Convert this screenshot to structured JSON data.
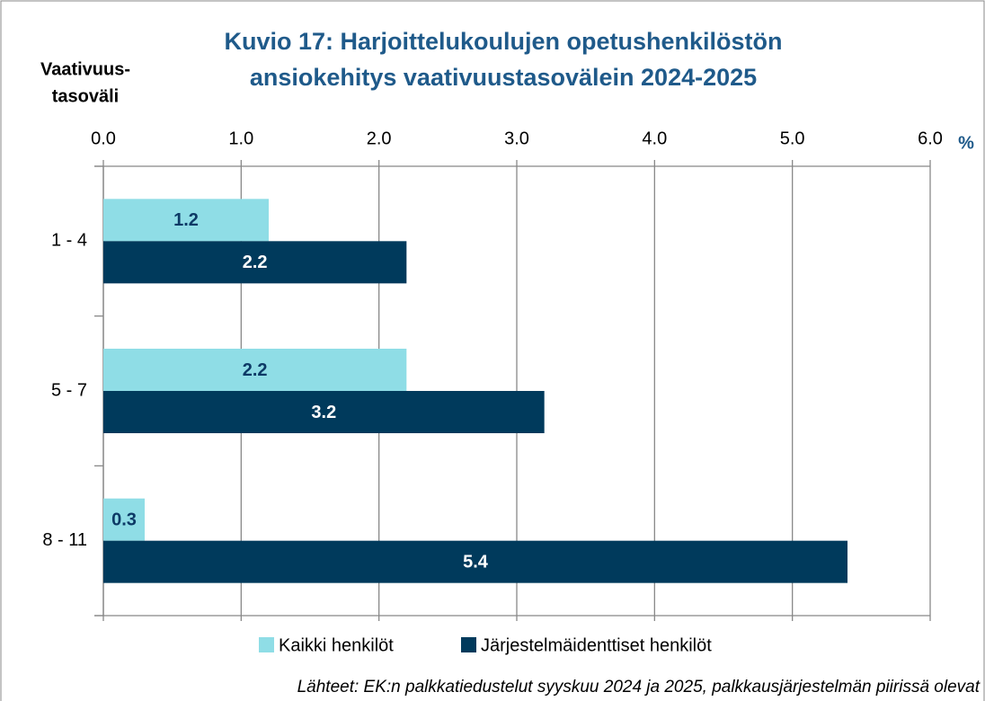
{
  "chart_data": {
    "type": "barh",
    "title_lines": [
      "Kuvio 17: Harjoittelukoulujen opetushenkilöstön",
      "ansiokehitys vaativuustasovälein 2024-2025"
    ],
    "y_label_lines": [
      "Vaativuus-",
      "tasoväli"
    ],
    "x_unit": "%",
    "categories": [
      "1 - 4",
      "5 - 7",
      "8 - 11"
    ],
    "series": [
      {
        "name": "Kaikki henkilöt",
        "color": "#8fdde6",
        "label_color": "#0d3a66",
        "values": [
          1.2,
          2.2,
          0.3
        ]
      },
      {
        "name": "Järjestelmäidenttiset henkilöt",
        "color": "#003a5c",
        "label_color": "#ffffff",
        "values": [
          2.2,
          3.2,
          5.4
        ]
      }
    ],
    "xlim": [
      0,
      6
    ],
    "xticks": [
      {
        "value": 0,
        "label": "0.0"
      },
      {
        "value": 1,
        "label": "1.0"
      },
      {
        "value": 2,
        "label": "2.0"
      },
      {
        "value": 3,
        "label": "3.0"
      },
      {
        "value": 4,
        "label": "4.0"
      },
      {
        "value": 5,
        "label": "5.0"
      },
      {
        "value": 6,
        "label": "6.0"
      }
    ],
    "grid": true,
    "source": "Lähteet: EK:n palkkatiedustelut syyskuu 2024 ja 2025, palkkausjärjestelmän piirissä olevat"
  }
}
